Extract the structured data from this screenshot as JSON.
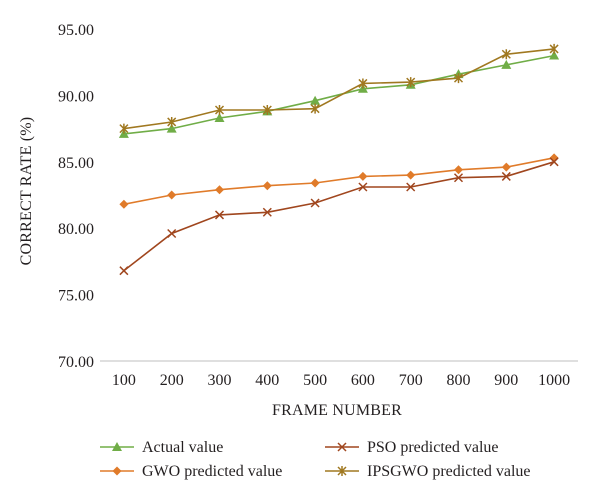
{
  "chart_data": {
    "type": "line",
    "title": "",
    "xlabel": "FRAME NUMBER",
    "ylabel": "CORRECT RATE (%)",
    "ylim": [
      70,
      95
    ],
    "y_ticks": [
      "70.00",
      "75.00",
      "80.00",
      "85.00",
      "90.00",
      "95.00"
    ],
    "y_tick_values": [
      70,
      75,
      80,
      85,
      90,
      95
    ],
    "categories": [
      "100",
      "200",
      "300",
      "400",
      "500",
      "600",
      "700",
      "800",
      "900",
      "1000"
    ],
    "grid": false,
    "legend_position": "bottom",
    "series": [
      {
        "name": "Actual value",
        "color": "#70ad47",
        "marker": "triangle",
        "values": [
          87.1,
          87.5,
          88.3,
          88.8,
          89.6,
          90.5,
          90.8,
          91.6,
          92.3,
          93.0
        ]
      },
      {
        "name": "PSO predicted value",
        "color": "#a0461e",
        "marker": "x",
        "values": [
          76.8,
          79.6,
          81.0,
          81.2,
          81.9,
          83.1,
          83.1,
          83.8,
          83.9,
          85.0
        ]
      },
      {
        "name": "GWO predicted value",
        "color": "#e07b2a",
        "marker": "diamond",
        "values": [
          81.8,
          82.5,
          82.9,
          83.2,
          83.4,
          83.9,
          84.0,
          84.4,
          84.6,
          85.3
        ]
      },
      {
        "name": "IPSGWO predicted value",
        "color": "#a07820",
        "marker": "star",
        "values": [
          87.5,
          88.0,
          88.9,
          88.9,
          89.0,
          90.9,
          91.0,
          91.3,
          93.1,
          93.5
        ]
      }
    ]
  }
}
